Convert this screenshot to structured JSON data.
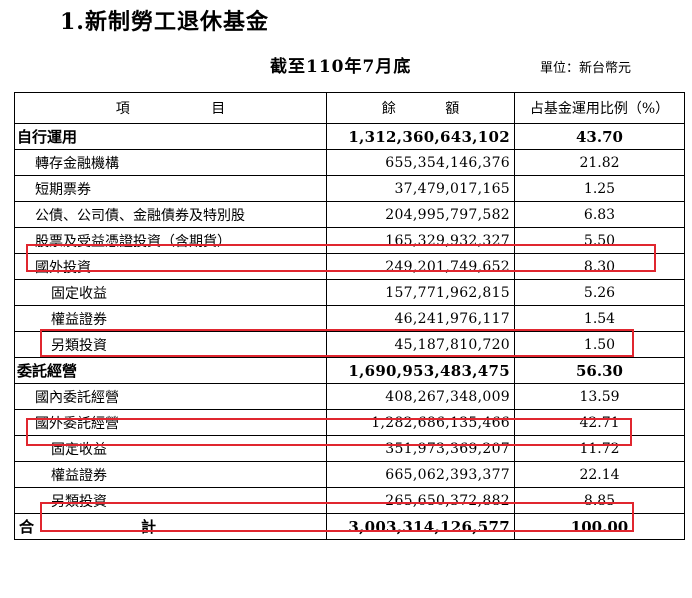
{
  "heading": "1.新制勞工退休基金",
  "subtitle": "截至110年7月底",
  "unit": "單位：新台幣元",
  "columns": {
    "item_a": "項",
    "item_b": "目",
    "amount_a": "餘",
    "amount_b": "額",
    "ratio": "占基金運用比例（%）"
  },
  "rows": [
    {
      "label": "自行運用",
      "amount": "1,312,360,643,102",
      "ratio": "43.70"
    },
    {
      "label": "轉存金融機構",
      "amount": "655,354,146,376",
      "ratio": "21.82"
    },
    {
      "label": "短期票券",
      "amount": "37,479,017,165",
      "ratio": "1.25"
    },
    {
      "label": "公債、公司債、金融債券及特別股",
      "amount": "204,995,797,582",
      "ratio": "6.83"
    },
    {
      "label": "股票及受益憑證投資（含期貨）",
      "amount": "165,329,932,327",
      "ratio": "5.50"
    },
    {
      "label": "國外投資",
      "amount": "249,201,749,652",
      "ratio": "8.30"
    },
    {
      "label": "固定收益",
      "amount": "157,771,962,815",
      "ratio": "5.26"
    },
    {
      "label": "權益證券",
      "amount": "46,241,976,117",
      "ratio": "1.54"
    },
    {
      "label": "另類投資",
      "amount": "45,187,810,720",
      "ratio": "1.50"
    },
    {
      "label": "委託經營",
      "amount": "1,690,953,483,475",
      "ratio": "56.30"
    },
    {
      "label": "國內委託經營",
      "amount": "408,267,348,009",
      "ratio": "13.59"
    },
    {
      "label": "國外委託經營",
      "amount": "1,282,686,135,466",
      "ratio": "42.71"
    },
    {
      "label": "固定收益",
      "amount": "351,973,369,207",
      "ratio": "11.72"
    },
    {
      "label": "權益證券",
      "amount": "665,062,393,377",
      "ratio": "22.14"
    },
    {
      "label": "另類投資",
      "amount": "265,650,372,882",
      "ratio": "8.85"
    }
  ],
  "total": {
    "label_a": "合",
    "label_b": "計",
    "amount": "3,003,314,126,577",
    "ratio": "100.00"
  },
  "highlight_color": "#e0262f"
}
